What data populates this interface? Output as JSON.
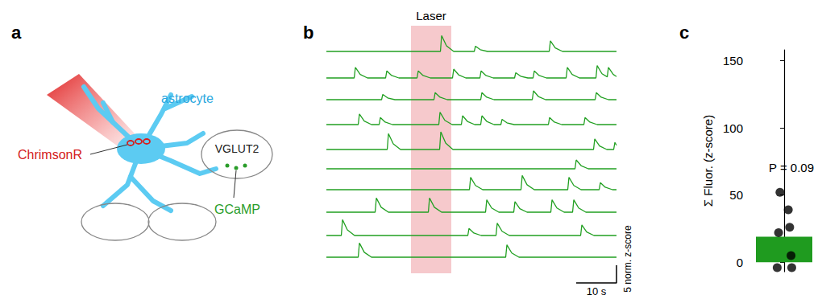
{
  "panel_labels": [
    "a",
    "b",
    "c"
  ],
  "diagram": {
    "labels": {
      "astrocyte": "astrocyte",
      "opsin": "ChrimsonR",
      "neuron": "VGLUT2",
      "indicator": "GCaMP"
    }
  },
  "chart_data": [
    {
      "type": "line",
      "color": "#22a022",
      "xlim": [
        0,
        72
      ],
      "ylim": [
        -1,
        5
      ],
      "tick_labels": false,
      "laser": {
        "label": "Laser",
        "start": 21,
        "end": 31,
        "color": "#f6c9cc"
      },
      "scale_bars": {
        "x": {
          "value": 10,
          "label": "10 s"
        },
        "y": {
          "value": 5,
          "label": "5 norm. z-score"
        }
      },
      "series": [
        {
          "x": [
            0,
            28.3,
            28.6,
            29.8,
            31.6,
            36.7,
            37,
            38.2,
            40,
            55.3,
            55.6,
            56.8,
            58.6,
            72
          ],
          "values": [
            0,
            0,
            4.5,
            1.6,
            0,
            0,
            1.5,
            0.5,
            0,
            0,
            3,
            1,
            0,
            0
          ]
        },
        {
          "x": [
            0,
            6.9,
            7.2,
            8.4,
            10.2,
            14.7,
            15,
            16.2,
            18,
            22.5,
            22.8,
            24,
            25.8,
            31.3,
            31.6,
            32.8,
            34.6,
            38.1,
            38.4,
            39.6,
            41.4,
            46.7,
            47,
            48.2,
            50,
            51.3,
            51.6,
            52.8,
            54.6,
            59.5,
            59.8,
            61,
            62.8,
            66.9,
            67.2,
            68.4,
            69.7,
            70,
            71.2,
            72
          ],
          "values": [
            0,
            0,
            3,
            1,
            0,
            0,
            2,
            0.7,
            0,
            0,
            2,
            0.7,
            0,
            0,
            2.5,
            0.9,
            0,
            0,
            2,
            0.7,
            0,
            0,
            1.5,
            0.5,
            0,
            0,
            2,
            0.7,
            0,
            0,
            3,
            1,
            0,
            0,
            3.5,
            1.2,
            0.3,
            3,
            1,
            0.4
          ]
        },
        {
          "x": [
            0,
            13.7,
            14,
            15.2,
            17,
            26.7,
            27,
            28.2,
            30,
            38.3,
            38.6,
            39.8,
            41.6,
            51.1,
            51.4,
            52.6,
            54.4,
            66.7,
            67,
            68.2,
            70,
            72
          ],
          "values": [
            0,
            0,
            1.5,
            0.5,
            0,
            0,
            2,
            0.7,
            0,
            0,
            2,
            0.7,
            0,
            0,
            2.5,
            0.9,
            0,
            0,
            2,
            0.7,
            0,
            0
          ]
        },
        {
          "x": [
            0,
            7.9,
            8.2,
            9.4,
            11.2,
            13.1,
            13.4,
            14.6,
            16.4,
            27.9,
            28.2,
            29.4,
            31.2,
            33.5,
            33.8,
            35,
            36.8,
            38.3,
            38.6,
            39.8,
            41.6,
            43.3,
            43.6,
            44.8,
            46.6,
            55.1,
            55.4,
            56.6,
            58.4,
            63.9,
            64.2,
            65.4,
            67.2,
            72
          ],
          "values": [
            0,
            0,
            3,
            1,
            0,
            0,
            2,
            0.7,
            0,
            0,
            3.5,
            1.2,
            0,
            0,
            2.5,
            0.9,
            0,
            0,
            2.5,
            0.9,
            0,
            0,
            1.5,
            0.5,
            0,
            0,
            2,
            0.7,
            0,
            0,
            2,
            0.7,
            0,
            0
          ]
        },
        {
          "x": [
            0,
            15.1,
            15.4,
            16.6,
            18.4,
            28.1,
            28.4,
            29.6,
            31.4,
            66.3,
            66.6,
            67.8,
            69.6,
            71.3,
            71.6,
            72
          ],
          "values": [
            0,
            0,
            4.5,
            1.6,
            0,
            0,
            5,
            1.8,
            0,
            0,
            3,
            1,
            0,
            0,
            2,
            1.2
          ]
        },
        {
          "x": [
            0,
            61.7,
            62,
            63.2,
            65,
            72
          ],
          "values": [
            0,
            0,
            2.5,
            0.9,
            0,
            0
          ]
        },
        {
          "x": [
            0,
            35.5,
            35.8,
            37,
            38.8,
            48.3,
            48.6,
            49.8,
            51.6,
            59.9,
            60.2,
            61.4,
            63.2,
            67.7,
            68,
            69.2,
            71,
            72
          ],
          "values": [
            0,
            0,
            3.5,
            1.2,
            0,
            0,
            4,
            1.4,
            0,
            0,
            3.5,
            1.2,
            0,
            0,
            2,
            0.7,
            0,
            0
          ]
        },
        {
          "x": [
            0,
            12.1,
            12.4,
            13.6,
            15.4,
            25.3,
            25.6,
            26.8,
            28.6,
            39.5,
            39.8,
            41,
            42.8,
            46.5,
            46.8,
            48,
            49.8,
            55.7,
            56,
            57.2,
            59,
            61.1,
            61.4,
            62.6,
            64.4,
            72
          ],
          "values": [
            0,
            0,
            4,
            1.4,
            0,
            0,
            4,
            1.4,
            0,
            0,
            3.5,
            1.2,
            0,
            0,
            3,
            1,
            0,
            0,
            3.5,
            1.2,
            0,
            0,
            3.5,
            1.2,
            0,
            0
          ]
        },
        {
          "x": [
            0,
            3.7,
            4,
            5.2,
            7,
            35.1,
            35.4,
            36.6,
            38.4,
            42.1,
            42.4,
            43.6,
            45.4,
            63.1,
            63.4,
            64.6,
            66.4,
            72
          ],
          "values": [
            0,
            0,
            4.5,
            1.6,
            0,
            0,
            2,
            0.7,
            0,
            0,
            3.5,
            1.2,
            0,
            0,
            3,
            1,
            0,
            0
          ]
        },
        {
          "x": [
            0,
            7.9,
            8.2,
            9.4,
            11.2,
            44.5,
            44.8,
            46,
            47.8,
            72
          ],
          "values": [
            0,
            0,
            4,
            1.4,
            0,
            0,
            3.5,
            1.2,
            0,
            0
          ]
        }
      ]
    },
    {
      "type": "bar",
      "ylabel": "Σ Fluor. (z-score)",
      "categories": [
        null
      ],
      "values": [
        19
      ],
      "color": "#1f9b1f",
      "points": {
        "values": [
          52,
          39,
          26,
          22,
          5,
          -4,
          -4
        ],
        "color": "#000000"
      },
      "ylim": [
        -7,
        158
      ],
      "yticks": [
        0,
        50,
        100,
        150
      ],
      "annotation": "P = 0.09",
      "tick_labels": "y"
    }
  ]
}
